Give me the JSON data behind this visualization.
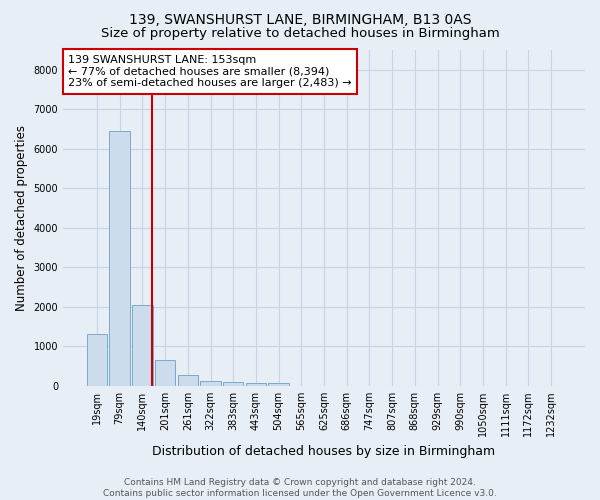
{
  "title1": "139, SWANSHURST LANE, BIRMINGHAM, B13 0AS",
  "title2": "Size of property relative to detached houses in Birmingham",
  "xlabel": "Distribution of detached houses by size in Birmingham",
  "ylabel": "Number of detached properties",
  "categories": [
    "19sqm",
    "79sqm",
    "140sqm",
    "201sqm",
    "261sqm",
    "322sqm",
    "383sqm",
    "443sqm",
    "504sqm",
    "565sqm",
    "625sqm",
    "686sqm",
    "747sqm",
    "807sqm",
    "868sqm",
    "929sqm",
    "990sqm",
    "1050sqm",
    "1111sqm",
    "1172sqm",
    "1232sqm"
  ],
  "values": [
    1300,
    6450,
    2050,
    650,
    270,
    130,
    100,
    65,
    65,
    0,
    0,
    0,
    0,
    0,
    0,
    0,
    0,
    0,
    0,
    0,
    0
  ],
  "bar_color": "#ccdcec",
  "bar_edge_color": "#7aaac8",
  "annotation_text": "139 SWANSHURST LANE: 153sqm\n← 77% of detached houses are smaller (8,394)\n23% of semi-detached houses are larger (2,483) →",
  "annotation_box_facecolor": "#ffffff",
  "annotation_box_edgecolor": "#cc0000",
  "vline_color": "#cc0000",
  "vline_x": 2.42,
  "ylim": [
    0,
    8500
  ],
  "yticks": [
    0,
    1000,
    2000,
    3000,
    4000,
    5000,
    6000,
    7000,
    8000
  ],
  "grid_color": "#c8d4e4",
  "background_color": "#e8eef6",
  "footer_text": "Contains HM Land Registry data © Crown copyright and database right 2024.\nContains public sector information licensed under the Open Government Licence v3.0.",
  "title1_fontsize": 10,
  "title2_fontsize": 9.5,
  "xlabel_fontsize": 9,
  "ylabel_fontsize": 8.5,
  "tick_fontsize": 7,
  "annotation_fontsize": 8,
  "footer_fontsize": 6.5
}
